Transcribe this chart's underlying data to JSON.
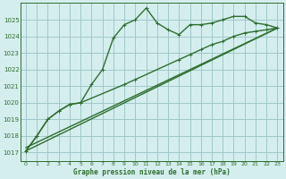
{
  "title": "Graphe pression niveau de la mer (hPa)",
  "bg_color": "#d4eeee",
  "grid_color": "#a0c8c8",
  "line_color": "#2d6e2d",
  "xlim": [
    -0.5,
    23.5
  ],
  "ylim": [
    1016.5,
    1026.0
  ],
  "yticks": [
    1017,
    1018,
    1019,
    1020,
    1021,
    1022,
    1023,
    1024,
    1025
  ],
  "xticks": [
    0,
    1,
    2,
    3,
    4,
    5,
    6,
    7,
    8,
    9,
    10,
    11,
    12,
    13,
    14,
    15,
    16,
    17,
    18,
    19,
    20,
    21,
    22,
    23
  ],
  "series": [
    {
      "x": [
        0,
        1,
        2,
        3,
        4,
        5,
        6,
        7,
        8,
        9,
        10,
        11,
        12,
        13,
        14,
        15,
        16,
        17,
        18,
        19,
        20,
        21,
        22,
        23
      ],
      "y": [
        1017.1,
        1018.0,
        1019.0,
        1019.5,
        1019.9,
        1020.0,
        1021.1,
        1022.0,
        1023.9,
        1024.7,
        1025.0,
        1025.7,
        1024.8,
        1024.4,
        1024.1,
        1024.7,
        1024.7,
        1024.8,
        1025.0,
        1025.2,
        1025.2,
        1024.8,
        1024.7,
        1024.5
      ],
      "marker": "+",
      "ms": 3,
      "lw": 1.0
    },
    {
      "x": [
        0,
        23
      ],
      "y": [
        1017.1,
        1024.5
      ],
      "marker": null,
      "ms": 0,
      "lw": 1.0
    },
    {
      "x": [
        0,
        23
      ],
      "y": [
        1017.1,
        1024.5
      ],
      "marker": null,
      "ms": 0,
      "lw": 1.0
    },
    {
      "x": [
        0,
        1,
        2,
        3,
        4,
        5,
        9,
        10,
        14,
        15,
        16,
        17,
        18,
        19,
        20,
        21,
        22,
        23
      ],
      "y": [
        1017.1,
        1018.0,
        1019.0,
        1019.5,
        1019.9,
        1020.0,
        1021.1,
        1021.4,
        1022.6,
        1022.9,
        1023.2,
        1023.5,
        1023.7,
        1024.0,
        1024.2,
        1024.3,
        1024.4,
        1024.5
      ],
      "marker": "+",
      "ms": 3,
      "lw": 1.0
    }
  ]
}
